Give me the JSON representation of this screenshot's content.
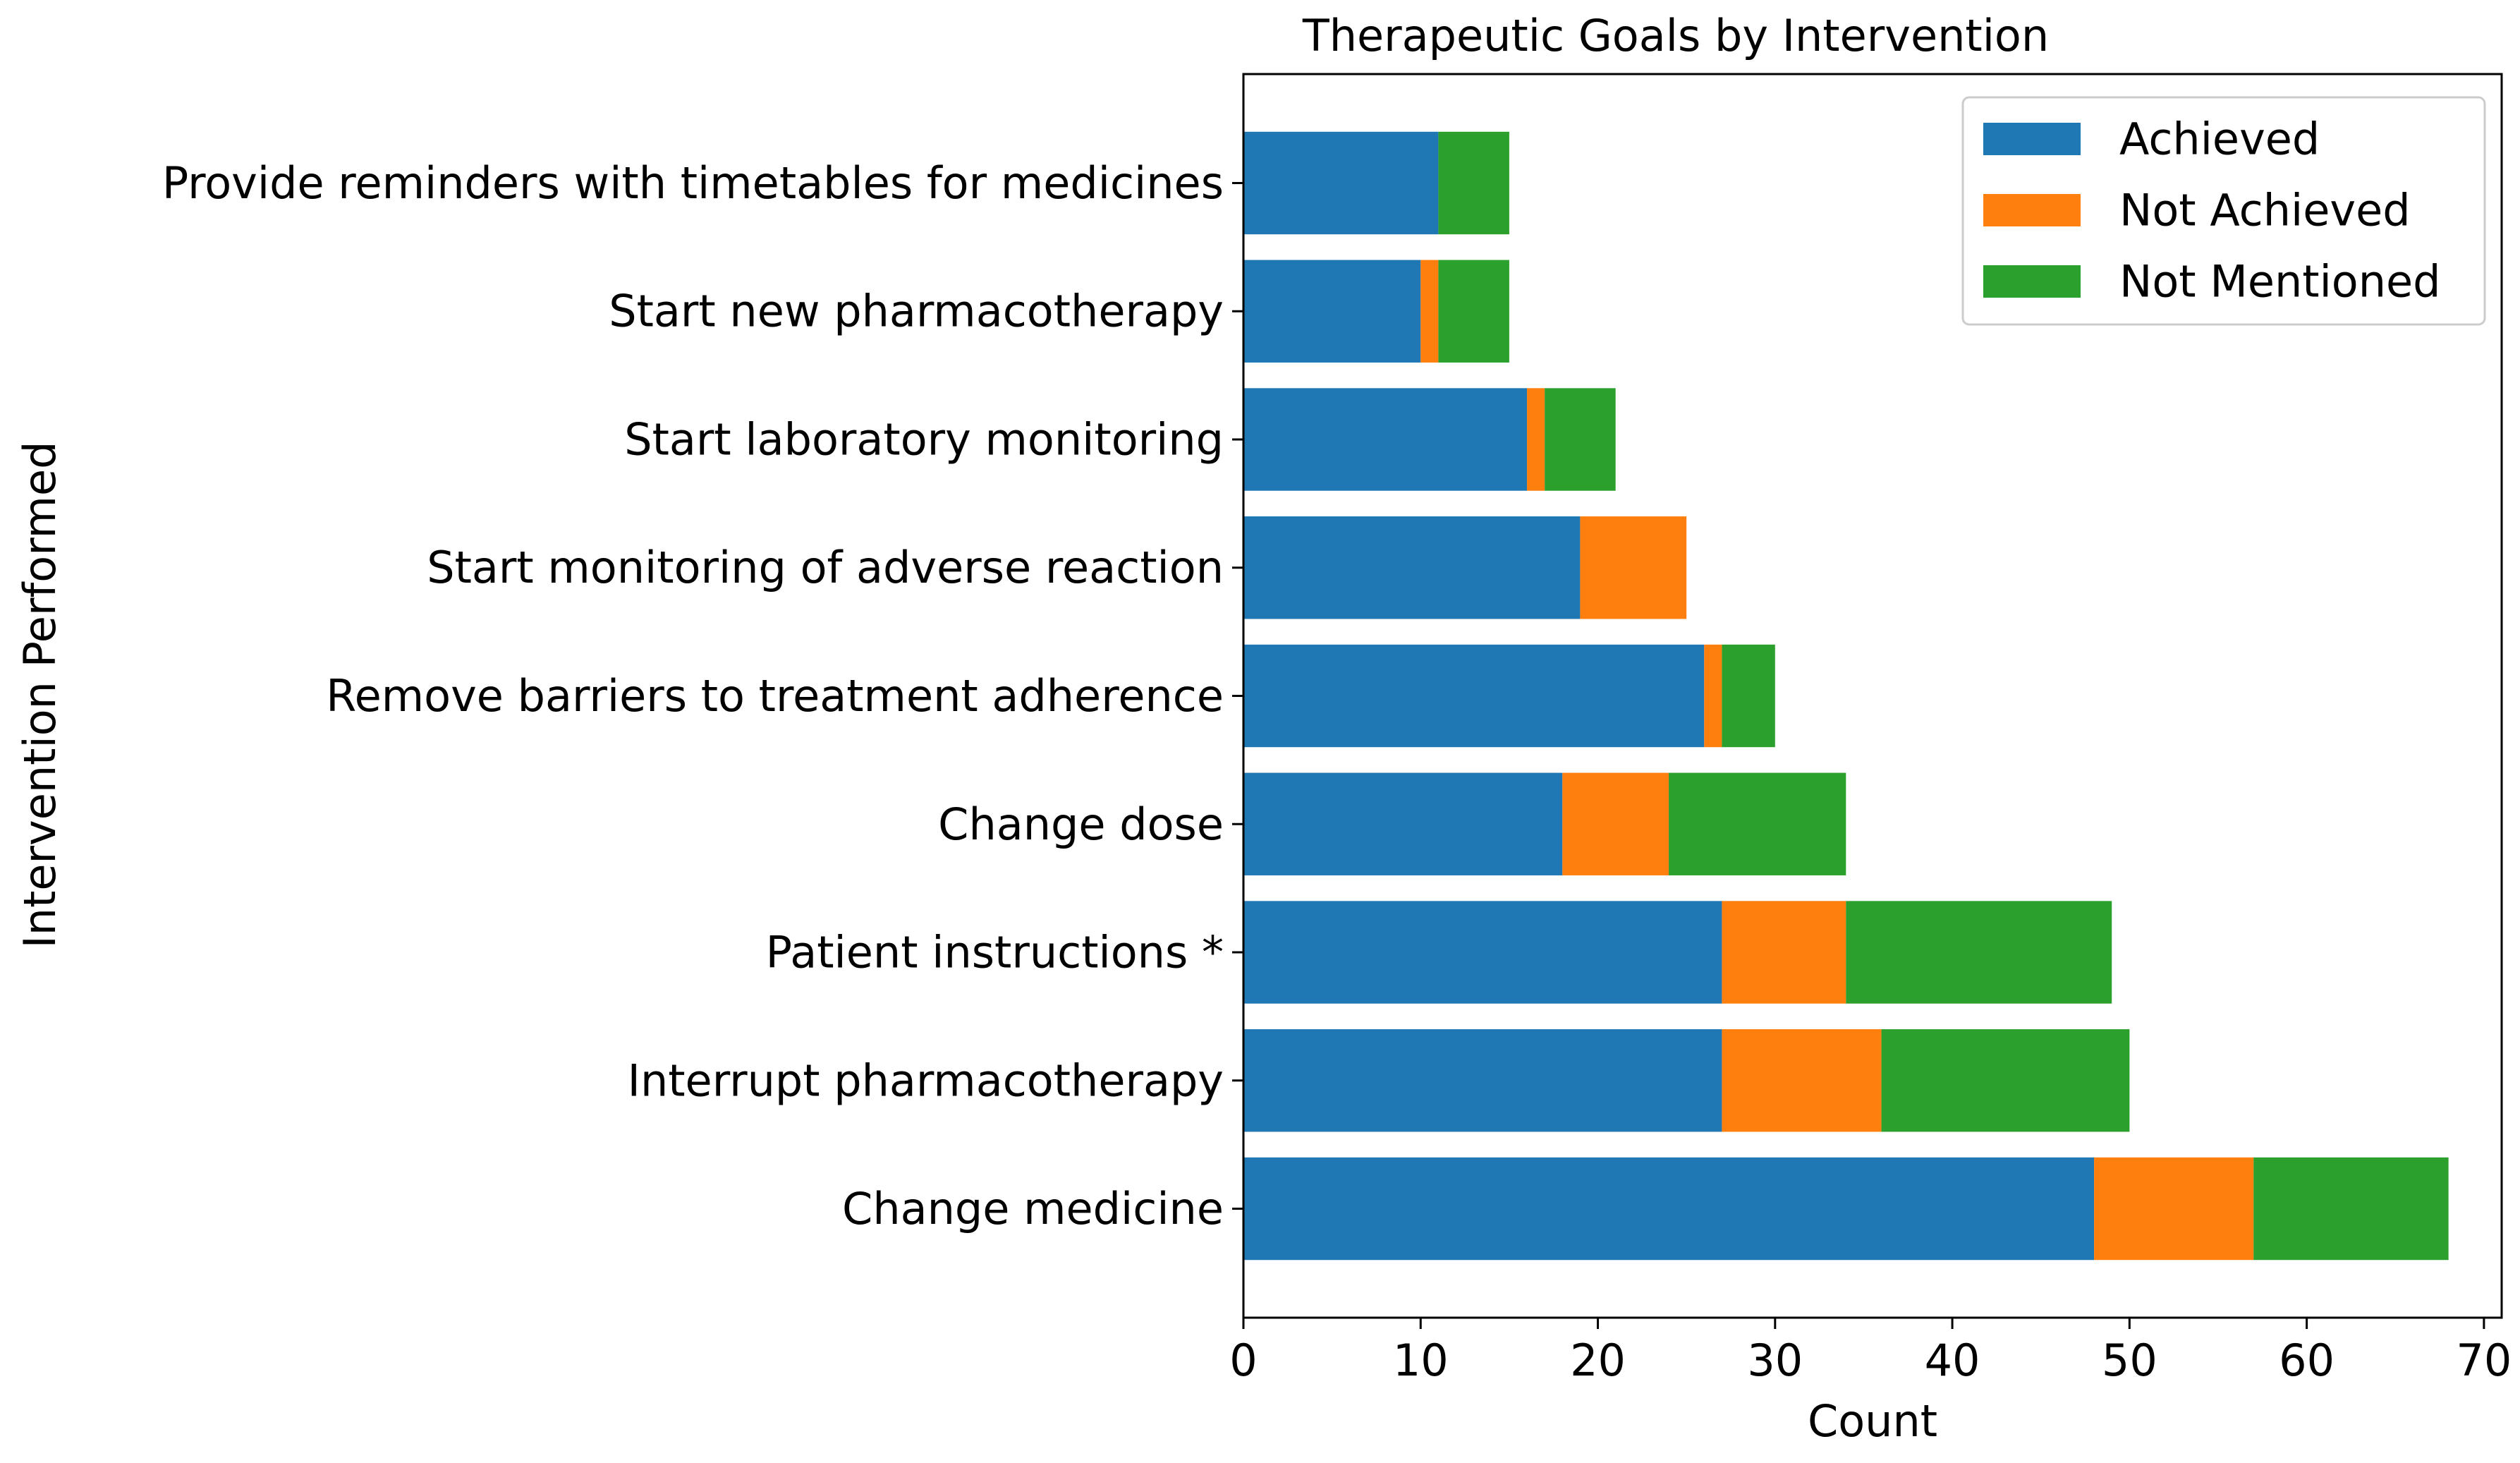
{
  "chart_data": {
    "type": "bar",
    "orientation": "horizontal",
    "stacked": true,
    "title": "Therapeutic Goals by Intervention",
    "xlabel": "Count",
    "ylabel": "Intervention Performed",
    "xlim": [
      0,
      71
    ],
    "xticks": [
      0,
      10,
      20,
      30,
      40,
      50,
      60,
      70
    ],
    "grid": false,
    "legend_position": "top-right",
    "categories": [
      "Change medicine",
      "Interrupt pharmacotherapy",
      "Patient instructions *",
      "Change dose",
      "Remove barriers to treatment adherence",
      "Start monitoring of adverse reaction",
      "Start laboratory monitoring",
      "Start new pharmacotherapy",
      "Provide reminders with timetables for medicines"
    ],
    "series": [
      {
        "name": "Achieved",
        "color": "#1f77b4",
        "values": [
          48,
          27,
          27,
          18,
          26,
          19,
          16,
          10,
          11
        ]
      },
      {
        "name": "Not Achieved",
        "color": "#ff7f0e",
        "values": [
          9,
          9,
          7,
          6,
          1,
          6,
          1,
          1,
          0
        ]
      },
      {
        "name": "Not Mentioned",
        "color": "#2ca02c",
        "values": [
          11,
          14,
          15,
          10,
          3,
          0,
          4,
          4,
          4
        ]
      }
    ]
  }
}
